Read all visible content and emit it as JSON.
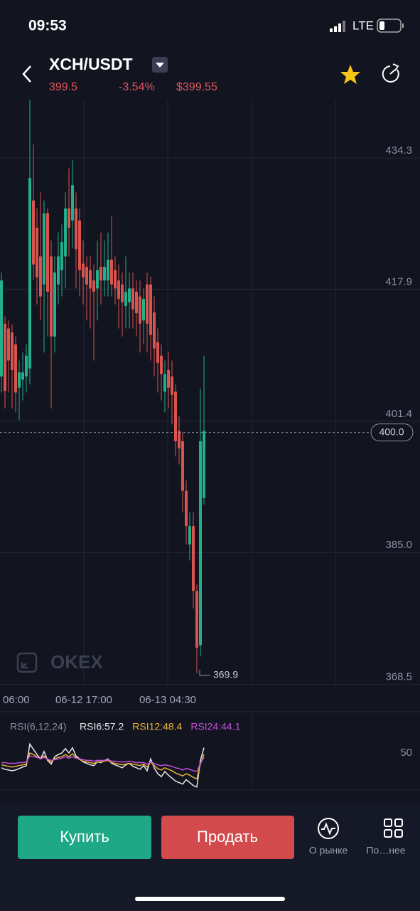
{
  "status_bar": {
    "time": "09:53",
    "network": "LTE"
  },
  "header": {
    "pair": "XCH/USDT",
    "last_price": "399.5",
    "change": "-3.54%",
    "usd_price": "$399.55"
  },
  "chart_data": [
    {
      "type": "candlestick",
      "up_color": "#22b08c",
      "down_color": "#d9544f",
      "open": [
        407,
        413.6,
        413,
        412.5,
        411,
        405.6,
        406.6,
        407,
        408,
        429,
        425.6,
        422,
        418.5,
        427.4,
        422,
        412,
        418.5,
        420.3,
        422,
        428,
        426.5,
        428,
        426.5,
        421.1,
        420.7,
        420.3,
        419,
        418,
        420.7,
        419,
        419,
        421.6,
        420.3,
        419,
        418.5,
        415.8,
        416.3,
        418,
        417.6,
        417,
        414,
        418.5,
        418.5,
        415,
        411.3,
        409.6,
        405.1,
        407.8,
        407,
        405.1,
        400.2,
        398.9,
        392.7,
        386,
        388.3,
        380.2,
        373.4,
        391.8
      ],
      "high": [
        420,
        414.5,
        414,
        413.5,
        412,
        409,
        410,
        411,
        441.6,
        436,
        428,
        430,
        429,
        428,
        424,
        422,
        425,
        426,
        430,
        433,
        434,
        430,
        428,
        424,
        422,
        422,
        421,
        424,
        425,
        424,
        425,
        427,
        422,
        421,
        420,
        422,
        420,
        420,
        419,
        419,
        418,
        420,
        419.5,
        417,
        413,
        411,
        409,
        410,
        409,
        406,
        402,
        400,
        394,
        390,
        390,
        381,
        405.5,
        409.6
      ],
      "low": [
        405,
        403,
        405,
        403,
        402.5,
        401.5,
        404,
        405,
        406,
        419,
        416,
        414,
        410,
        412,
        403,
        410,
        416,
        417,
        418,
        422,
        423,
        418,
        417,
        416,
        414,
        413,
        409,
        414,
        416,
        417,
        417,
        417,
        416,
        413,
        412,
        413,
        413,
        413,
        412,
        410,
        411,
        410,
        409,
        407,
        405,
        404,
        402.5,
        403,
        401,
        397,
        396,
        390,
        386,
        384,
        378,
        369.9,
        372,
        391
      ],
      "close": [
        419,
        405.2,
        409,
        407.8,
        405,
        407.5,
        407.5,
        409.6,
        431.8,
        421,
        419.4,
        417,
        427.4,
        417.6,
        412,
        420,
        422,
        423.8,
        428,
        425.6,
        430.9,
        422.9,
        420.3,
        419.4,
        418.5,
        418,
        417.6,
        420.3,
        419,
        420.7,
        421.6,
        418.5,
        418,
        416.7,
        416.3,
        417.6,
        418,
        415.4,
        414.9,
        413.6,
        416.7,
        413.6,
        412.2,
        410.5,
        408.7,
        407.3,
        407.3,
        405.6,
        404.7,
        398.9,
        398,
        392.7,
        388.3,
        388.3,
        380.2,
        373.1,
        398.9,
        400.2
      ],
      "ylim": [
        368.3,
        441.6
      ],
      "yticks": [
        434.3,
        417.9,
        401.4,
        {
          "value": 385,
          "label": "385.0"
        },
        368.5
      ],
      "grid": true,
      "current_price": {
        "value": 400,
        "label": "400.0"
      },
      "low_marker": 369.9,
      "xtick_labels": [
        "06:00",
        "06-12 17:00",
        "06-13 04:30"
      ],
      "watermark": "OKEX"
    },
    {
      "type": "line",
      "title": "RSI(6,12,24)",
      "ylim": [
        0,
        100
      ],
      "yticks": [
        50
      ],
      "series": [
        {
          "name": "RSI6:57.2",
          "color": "#e8e8e8",
          "values": [
            30,
            28,
            27,
            26,
            27,
            29,
            31,
            33,
            62,
            55,
            48,
            42,
            52,
            40,
            35,
            45,
            48,
            50,
            56,
            50,
            57,
            46,
            42,
            38,
            36,
            34,
            33,
            38,
            37,
            40,
            42,
            36,
            34,
            32,
            30,
            34,
            36,
            32,
            30,
            28,
            33,
            26,
            42,
            30,
            22,
            18,
            25,
            20,
            16,
            12,
            10,
            8,
            14,
            10,
            6,
            4,
            40,
            57.2
          ]
        },
        {
          "name": "RSI12:48.4",
          "color": "#e9b338",
          "values": [
            34,
            33,
            32,
            31,
            32,
            33,
            34,
            35,
            50,
            48,
            45,
            42,
            46,
            41,
            38,
            42,
            44,
            45,
            48,
            45,
            49,
            44,
            41,
            39,
            38,
            37,
            36,
            38,
            38,
            39,
            40,
            37,
            36,
            35,
            34,
            35,
            36,
            35,
            34,
            33,
            35,
            31,
            38,
            33,
            29,
            27,
            30,
            28,
            26,
            23,
            21,
            19,
            22,
            20,
            17,
            15,
            35,
            48.4
          ]
        },
        {
          "name": "RSI24:44.1",
          "color": "#c24fd8",
          "values": [
            37,
            37,
            36,
            36,
            36,
            37,
            37,
            38,
            46,
            45,
            44,
            42,
            44,
            42,
            40,
            41,
            42,
            43,
            45,
            43,
            45,
            43,
            42,
            41,
            40,
            40,
            39,
            40,
            40,
            40,
            41,
            39,
            39,
            38,
            38,
            38,
            39,
            38,
            37,
            37,
            37,
            35,
            38,
            36,
            34,
            33,
            34,
            33,
            32,
            30,
            29,
            27,
            29,
            28,
            26,
            25,
            36,
            44.1
          ]
        }
      ]
    }
  ],
  "actions": {
    "buy": "Купить",
    "sell": "Продать",
    "market": "О рынке",
    "more": "По…нее"
  }
}
